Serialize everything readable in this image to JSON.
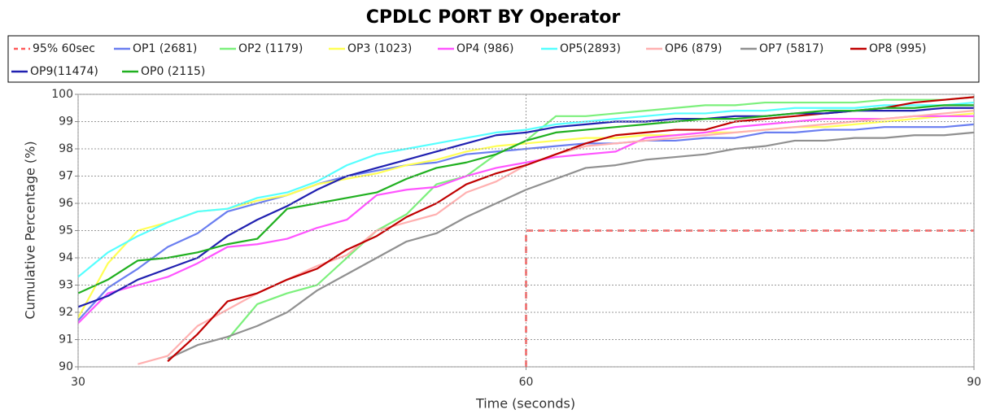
{
  "chart_data": {
    "type": "line",
    "title": "CPDLC PORT BY Operator",
    "x_label": "Time (seconds)",
    "y_label": "Cumulative Percentage (%)",
    "xlim": [
      30,
      90
    ],
    "xticks": [
      30,
      60,
      90
    ],
    "ylim": [
      90,
      100
    ],
    "yticks": [
      90,
      91,
      92,
      93,
      94,
      95,
      96,
      97,
      98,
      99,
      100
    ],
    "grid": true,
    "x": [
      30,
      32,
      34,
      36,
      38,
      40,
      42,
      44,
      46,
      48,
      50,
      52,
      54,
      56,
      58,
      60,
      62,
      64,
      66,
      68,
      70,
      72,
      74,
      76,
      78,
      80,
      82,
      84,
      86,
      88,
      90
    ],
    "series": [
      {
        "name": "95% 60sec",
        "color": "#ff5a5a",
        "dashed": true,
        "x": [
          60,
          60,
          90
        ],
        "values": [
          90,
          95,
          95
        ]
      },
      {
        "name": "OP1 (2681)",
        "color": "#6a7ef0",
        "values": [
          91.7,
          92.9,
          93.6,
          94.4,
          94.9,
          95.7,
          96.0,
          96.3,
          96.7,
          97.0,
          97.2,
          97.4,
          97.5,
          97.8,
          97.9,
          98.0,
          98.1,
          98.2,
          98.2,
          98.3,
          98.3,
          98.4,
          98.4,
          98.6,
          98.6,
          98.7,
          98.7,
          98.8,
          98.8,
          98.8,
          98.9
        ]
      },
      {
        "name": "OP2 (1179)",
        "color": "#7cf07c",
        "values": [
          null,
          null,
          null,
          null,
          null,
          91.0,
          92.3,
          92.7,
          93.0,
          94.0,
          95.0,
          95.6,
          96.7,
          97.0,
          97.8,
          98.3,
          99.2,
          99.2,
          99.3,
          99.4,
          99.5,
          99.6,
          99.6,
          99.7,
          99.7,
          99.7,
          99.7,
          99.8,
          99.8,
          99.8,
          99.9
        ]
      },
      {
        "name": "OP3 (1023)",
        "color": "#ffff55",
        "values": [
          91.8,
          93.8,
          95.0,
          95.3,
          95.7,
          95.8,
          96.1,
          96.3,
          96.7,
          96.9,
          97.1,
          97.4,
          97.6,
          97.9,
          98.1,
          98.2,
          98.3,
          98.4,
          98.4,
          98.5,
          98.5,
          98.6,
          98.6,
          98.7,
          98.8,
          98.8,
          98.9,
          99.0,
          99.1,
          99.2,
          99.3
        ]
      },
      {
        "name": "OP4 (986)",
        "color": "#ff55ff",
        "values": [
          91.6,
          92.7,
          93.0,
          93.3,
          93.8,
          94.4,
          94.5,
          94.7,
          95.1,
          95.4,
          96.3,
          96.5,
          96.6,
          97.0,
          97.3,
          97.5,
          97.7,
          97.8,
          97.9,
          98.4,
          98.5,
          98.6,
          98.8,
          98.9,
          99.0,
          99.1,
          99.1,
          99.1,
          99.2,
          99.2,
          99.2
        ]
      },
      {
        "name": "OP5(2893)",
        "color": "#55ffff",
        "values": [
          93.3,
          94.2,
          94.8,
          95.3,
          95.7,
          95.8,
          96.2,
          96.4,
          96.8,
          97.4,
          97.8,
          98.0,
          98.2,
          98.4,
          98.6,
          98.7,
          98.9,
          99.0,
          99.1,
          99.2,
          99.3,
          99.3,
          99.4,
          99.4,
          99.5,
          99.5,
          99.5,
          99.6,
          99.6,
          99.6,
          99.7
        ]
      },
      {
        "name": "OP6 (879)",
        "color": "#ffb0b0",
        "values": [
          null,
          null,
          90.1,
          90.4,
          91.5,
          92.1,
          92.7,
          93.2,
          93.7,
          94.1,
          95.0,
          95.3,
          95.6,
          96.4,
          96.8,
          97.4,
          97.8,
          98.1,
          98.2,
          98.3,
          98.4,
          98.5,
          98.6,
          98.7,
          98.8,
          98.9,
          99.0,
          99.1,
          99.2,
          99.3,
          99.4
        ]
      },
      {
        "name": "OP7 (5817)",
        "color": "#909090",
        "values": [
          null,
          null,
          null,
          90.3,
          90.8,
          91.1,
          91.5,
          92.0,
          92.8,
          93.4,
          94.0,
          94.6,
          94.9,
          95.5,
          96.0,
          96.5,
          96.9,
          97.3,
          97.4,
          97.6,
          97.7,
          97.8,
          98.0,
          98.1,
          98.3,
          98.3,
          98.4,
          98.4,
          98.5,
          98.5,
          98.6
        ]
      },
      {
        "name": "OP8 (995)",
        "color": "#c00000",
        "values": [
          null,
          null,
          null,
          90.2,
          91.2,
          92.4,
          92.7,
          93.2,
          93.6,
          94.3,
          94.8,
          95.5,
          96.0,
          96.7,
          97.1,
          97.4,
          97.8,
          98.2,
          98.5,
          98.6,
          98.7,
          98.7,
          99.0,
          99.1,
          99.2,
          99.3,
          99.4,
          99.5,
          99.7,
          99.8,
          99.9
        ]
      },
      {
        "name": "OP9(11474)",
        "color": "#2020b0",
        "values": [
          92.2,
          92.6,
          93.2,
          93.6,
          94.0,
          94.8,
          95.4,
          95.9,
          96.5,
          97.0,
          97.3,
          97.6,
          97.9,
          98.2,
          98.5,
          98.6,
          98.8,
          98.9,
          99.0,
          99.0,
          99.1,
          99.1,
          99.2,
          99.2,
          99.3,
          99.3,
          99.4,
          99.4,
          99.4,
          99.5,
          99.5
        ]
      },
      {
        "name": "OP0 (2115)",
        "color": "#20b020",
        "values": [
          92.7,
          93.2,
          93.9,
          94.0,
          94.2,
          94.5,
          94.7,
          95.8,
          96.0,
          96.2,
          96.4,
          96.9,
          97.3,
          97.5,
          97.8,
          98.3,
          98.6,
          98.7,
          98.8,
          98.9,
          99.0,
          99.1,
          99.1,
          99.2,
          99.3,
          99.4,
          99.4,
          99.5,
          99.5,
          99.6,
          99.6
        ]
      }
    ]
  }
}
